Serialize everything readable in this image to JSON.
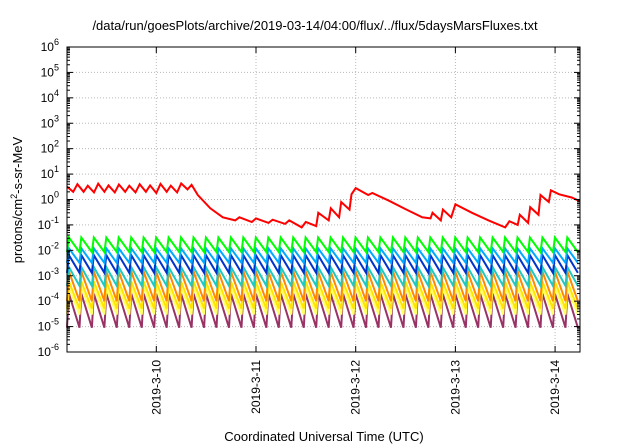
{
  "chart_data": {
    "type": "line",
    "title": "/data/run/goesPlots/archive/2019-03-14/04:00/flux/../flux/5daysMarsFluxes.txt",
    "xlabel": "Coordinated Universal Time (UTC)",
    "ylabel": {
      "base": "protons/cm",
      "sup": "2",
      "rest": "-s-sr-MeV"
    },
    "y_scale": "log",
    "ylim": [
      1e-06,
      1000000.0
    ],
    "xlim": [
      "2019-03-09T02:30",
      "2019-03-14T06:00"
    ],
    "grid": true,
    "legend": "none",
    "x_ticks": [
      {
        "value": "2019-03-10",
        "label": "2019-3-10"
      },
      {
        "value": "2019-03-11",
        "label": "2019-3-11"
      },
      {
        "value": "2019-03-12",
        "label": "2019-3-12"
      },
      {
        "value": "2019-03-13",
        "label": "2019-3-13"
      },
      {
        "value": "2019-03-14",
        "label": "2019-3-14"
      }
    ],
    "y_ticks": [
      {
        "value": 1e-06,
        "base": "10",
        "exp": "-6"
      },
      {
        "value": 1e-05,
        "base": "10",
        "exp": "-5"
      },
      {
        "value": 0.0001,
        "base": "10",
        "exp": "-4"
      },
      {
        "value": 0.001,
        "base": "10",
        "exp": "-3"
      },
      {
        "value": 0.01,
        "base": "10",
        "exp": "-2"
      },
      {
        "value": 0.1,
        "base": "10",
        "exp": "-1"
      },
      {
        "value": 1,
        "base": "10",
        "exp": "0"
      },
      {
        "value": 10,
        "base": "10",
        "exp": "1"
      },
      {
        "value": 100,
        "base": "10",
        "exp": "2"
      },
      {
        "value": 1000,
        "base": "10",
        "exp": "3"
      },
      {
        "value": 10000,
        "base": "10",
        "exp": "4"
      },
      {
        "value": 100000,
        "base": "10",
        "exp": "5"
      },
      {
        "value": 1000000,
        "base": "10",
        "exp": "6"
      }
    ],
    "series": [
      {
        "color": "#ff0000",
        "x": [
          "2019-03-09T02:30",
          "2019-03-09T04:00",
          "2019-03-09T05:00",
          "2019-03-09T06:30",
          "2019-03-09T07:30",
          "2019-03-09T09:00",
          "2019-03-09T10:00",
          "2019-03-09T11:30",
          "2019-03-09T12:30",
          "2019-03-09T14:00",
          "2019-03-09T15:00",
          "2019-03-09T16:30",
          "2019-03-09T17:30",
          "2019-03-09T19:00",
          "2019-03-09T20:00",
          "2019-03-09T21:30",
          "2019-03-09T22:30",
          "2019-03-10T00:00",
          "2019-03-10T01:00",
          "2019-03-10T02:30",
          "2019-03-10T03:30",
          "2019-03-10T05:00",
          "2019-03-10T06:00",
          "2019-03-10T07:30",
          "2019-03-10T08:30",
          "2019-03-10T10:00",
          "2019-03-10T13:00",
          "2019-03-10T16:00",
          "2019-03-10T19:00",
          "2019-03-10T20:00",
          "2019-03-10T23:00",
          "2019-03-11T00:00",
          "2019-03-11T03:00",
          "2019-03-11T04:00",
          "2019-03-11T07:00",
          "2019-03-11T08:00",
          "2019-03-11T11:00",
          "2019-03-11T12:00",
          "2019-03-11T14:30",
          "2019-03-11T15:00",
          "2019-03-11T17:30",
          "2019-03-11T18:00",
          "2019-03-11T20:00",
          "2019-03-11T20:30",
          "2019-03-11T22:30",
          "2019-03-11T23:00",
          "2019-03-12T00:00",
          "2019-03-12T03:00",
          "2019-03-12T04:00",
          "2019-03-12T08:00",
          "2019-03-12T12:00",
          "2019-03-12T16:00",
          "2019-03-12T18:00",
          "2019-03-12T18:30",
          "2019-03-12T20:30",
          "2019-03-12T21:00",
          "2019-03-12T23:00",
          "2019-03-13T00:00",
          "2019-03-13T04:00",
          "2019-03-13T08:00",
          "2019-03-13T12:00",
          "2019-03-13T13:00",
          "2019-03-13T15:00",
          "2019-03-13T15:30",
          "2019-03-13T17:30",
          "2019-03-13T18:00",
          "2019-03-13T20:00",
          "2019-03-13T20:30",
          "2019-03-13T22:30",
          "2019-03-13T23:00",
          "2019-03-14T01:00",
          "2019-03-14T04:00",
          "2019-03-14T06:00"
        ],
        "y": [
          3.2,
          2.0,
          4.0,
          2.0,
          3.5,
          1.9,
          4.2,
          2.0,
          3.6,
          1.9,
          3.9,
          2.0,
          3.5,
          1.9,
          4.0,
          2.0,
          3.6,
          1.8,
          4.1,
          2.0,
          3.5,
          1.9,
          4.3,
          2.5,
          3.8,
          1.5,
          0.45,
          0.2,
          0.15,
          0.2,
          0.13,
          0.18,
          0.12,
          0.16,
          0.11,
          0.15,
          0.08,
          0.13,
          0.09,
          0.3,
          0.15,
          0.45,
          0.2,
          0.8,
          0.4,
          1.6,
          2.8,
          1.5,
          1.8,
          0.9,
          0.42,
          0.2,
          0.18,
          0.3,
          0.15,
          0.4,
          0.2,
          0.65,
          0.3,
          0.15,
          0.08,
          0.14,
          0.1,
          0.25,
          0.12,
          0.5,
          0.25,
          1.5,
          0.8,
          2.3,
          1.6,
          1.2,
          0.85
        ]
      }
    ],
    "sawtooth_series": [
      {
        "color": "#00ff00",
        "high": 0.032,
        "low": 0.0085
      },
      {
        "color": "#00aaff",
        "high": 0.012,
        "low": 0.0032
      },
      {
        "color": "#0033cc",
        "high": 0.0065,
        "low": 0.0013
      },
      {
        "color": "#1fc9c0",
        "high": 0.0022,
        "low": 0.0004
      },
      {
        "color": "#ff8800",
        "high": 0.0015,
        "low": 0.0001
      },
      {
        "color": "#ffe500",
        "high": 0.0006,
        "low": 5e-05
      },
      {
        "color": "#ffff66",
        "high": 0.00035,
        "low": 3e-05
      },
      {
        "color": "#993366",
        "high": 0.0002,
        "low": 9e-06
      }
    ],
    "sawtooth_period_hours": 3.0,
    "sawtooth_start": "2019-03-09T02:30",
    "sawtooth_end": "2019-03-14T06:00"
  }
}
